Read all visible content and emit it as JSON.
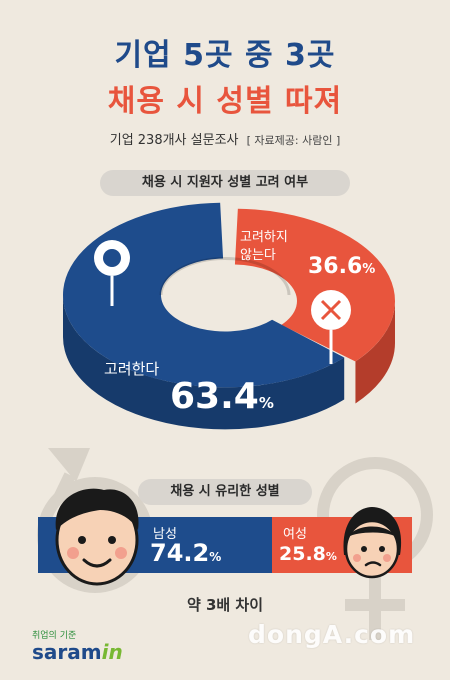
{
  "header": {
    "title_line1": "기업 5곳 중 3곳",
    "title_line2": "채용 시 성별 따져",
    "subtitle": "기업 238개사 설문조사",
    "source": "[ 자료제공: 사람인 ]"
  },
  "chart_data": [
    {
      "type": "pie",
      "title": "채용 시 지원자 성별 고려 여부",
      "series": [
        {
          "name": "고려한다",
          "value": 63.4
        },
        {
          "name": "고려하지 않는다",
          "value": 36.6
        }
      ],
      "labels": {
        "consider": "고려한다",
        "not_consider_line1": "고려하지",
        "not_consider_line2": "않는다",
        "consider_value": "63.4",
        "not_consider_value": "36.6",
        "unit": "%"
      }
    },
    {
      "type": "bar",
      "title": "채용 시 유리한 성별",
      "categories": [
        "남성",
        "여성"
      ],
      "values": [
        74.2,
        25.8
      ],
      "value_labels": [
        "74.2",
        "25.8"
      ],
      "unit": "%"
    }
  ],
  "footnote": "약 3배 차이",
  "logo": {
    "small": "취업의 기준",
    "main": "saram",
    "accent": "in"
  },
  "watermark": "dongA.com",
  "colors": {
    "blue": "#1e4c8c",
    "blue_side": "#163a6b",
    "red": "#e8553d",
    "red_side": "#b43d2b",
    "bg": "#efe9df"
  }
}
